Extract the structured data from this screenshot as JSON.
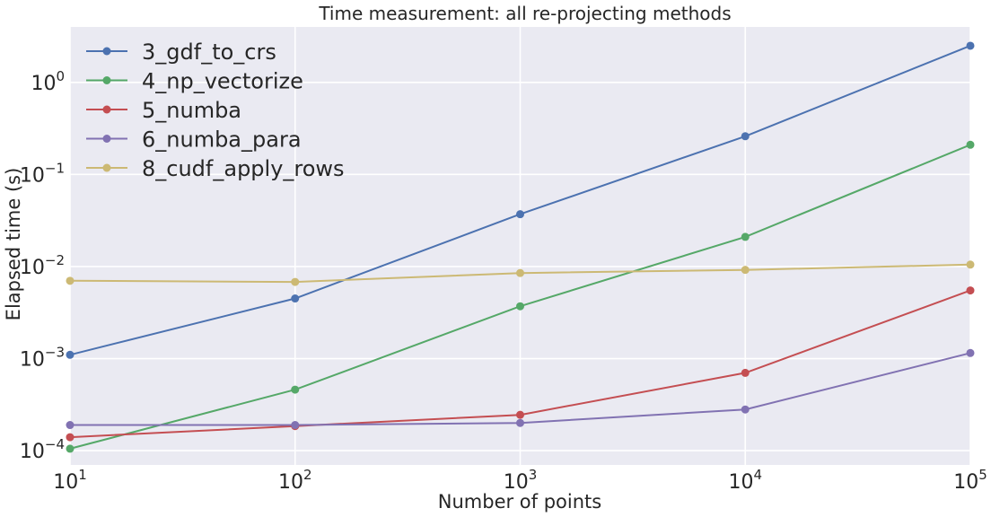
{
  "chart_data": {
    "type": "line",
    "title": "Time measurement: all re-projecting methods",
    "xlabel": "Number of points",
    "ylabel": "Elapsed time (s)",
    "xscale": "log",
    "yscale": "log",
    "xlim": [
      10,
      100000
    ],
    "ylim": [
      7e-05,
      4
    ],
    "grid": true,
    "legend_position": "top-left",
    "x": [
      10,
      100,
      1000,
      10000,
      100000
    ],
    "x_ticks": [
      {
        "base": "10",
        "exp": "1"
      },
      {
        "base": "10",
        "exp": "2"
      },
      {
        "base": "10",
        "exp": "3"
      },
      {
        "base": "10",
        "exp": "4"
      },
      {
        "base": "10",
        "exp": "5"
      }
    ],
    "y_ticks": [
      {
        "base": "10",
        "exp": "−4"
      },
      {
        "base": "10",
        "exp": "−3"
      },
      {
        "base": "10",
        "exp": "−2"
      },
      {
        "base": "10",
        "exp": "−1"
      },
      {
        "base": "10",
        "exp": "0"
      }
    ],
    "series": [
      {
        "name": "3_gdf_to_crs",
        "color": "#4c72b0",
        "values": [
          0.0011,
          0.0045,
          0.037,
          0.26,
          2.5
        ]
      },
      {
        "name": "4_np_vectorize",
        "color": "#55a868",
        "values": [
          0.000105,
          0.00046,
          0.0037,
          0.021,
          0.21
        ]
      },
      {
        "name": "5_numba",
        "color": "#c44e52",
        "values": [
          0.00014,
          0.000185,
          0.000245,
          0.0007,
          0.0055
        ]
      },
      {
        "name": "6_numba_para",
        "color": "#8172b2",
        "values": [
          0.00019,
          0.00019,
          0.0002,
          0.00028,
          0.00115
        ]
      },
      {
        "name": "8_cudf_apply_rows",
        "color": "#ccb974",
        "values": [
          0.007,
          0.0068,
          0.0085,
          0.0092,
          0.0105
        ]
      }
    ]
  }
}
